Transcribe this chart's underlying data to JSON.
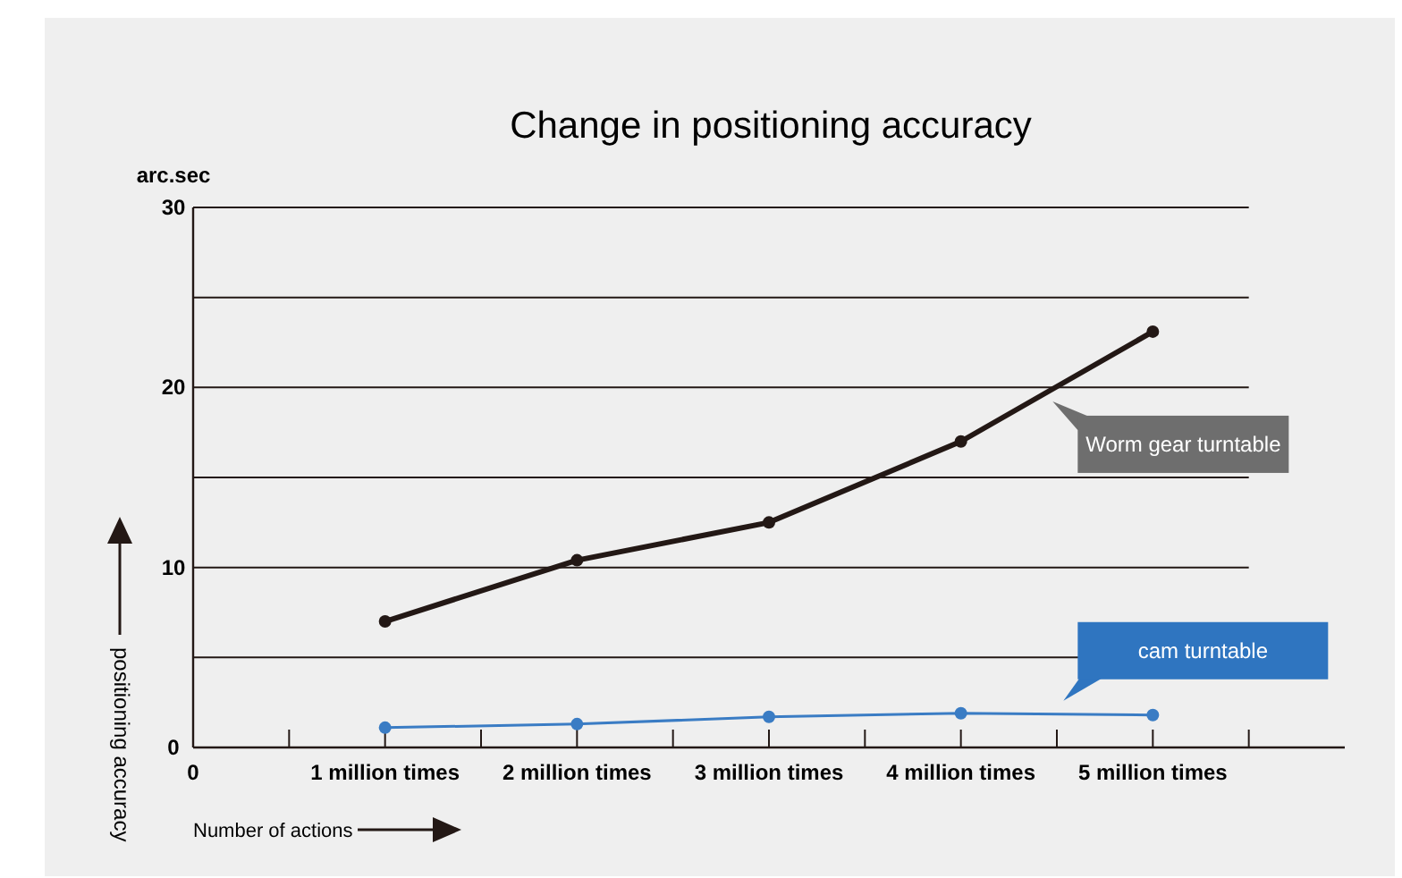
{
  "chart_data": {
    "type": "line",
    "title": "Change in positioning accuracy",
    "xlabel": "Number of actions",
    "ylabel": "positioning accuracy",
    "annotations": [
      "arc.sec"
    ],
    "x": [
      1,
      2,
      3,
      4,
      5
    ],
    "series": [
      {
        "name": "Worm gear turntable",
        "color": "#231815",
        "values": [
          7.0,
          10.4,
          12.5,
          17.0,
          23.1
        ]
      },
      {
        "name": "cam turntable",
        "color": "#3a7cc4",
        "values": [
          1.1,
          1.3,
          1.7,
          1.9,
          1.8
        ]
      }
    ],
    "xlim": [
      0,
      6
    ],
    "xticks": [
      0,
      {
        "value": 0.5,
        "label": null
      },
      {
        "value": 1,
        "label": "1 million times"
      },
      {
        "value": 1.5,
        "label": null
      },
      {
        "value": 2,
        "label": "2 million times"
      },
      {
        "value": 2.5,
        "label": null
      },
      {
        "value": 3,
        "label": "3 million times"
      },
      {
        "value": 3.5,
        "label": null
      },
      {
        "value": 4,
        "label": "4 million times"
      },
      {
        "value": 4.5,
        "label": null
      },
      {
        "value": 5,
        "label": "5 million times"
      },
      {
        "value": 5.5,
        "label": null
      }
    ],
    "ylim": [
      0,
      30
    ],
    "yticks": [
      0,
      {
        "value": 5,
        "label": null
      },
      10,
      {
        "value": 15,
        "label": null
      },
      20,
      {
        "value": 25,
        "label": null
      },
      30
    ],
    "grid": "y",
    "marker": "circle",
    "line_style": "solid"
  }
}
